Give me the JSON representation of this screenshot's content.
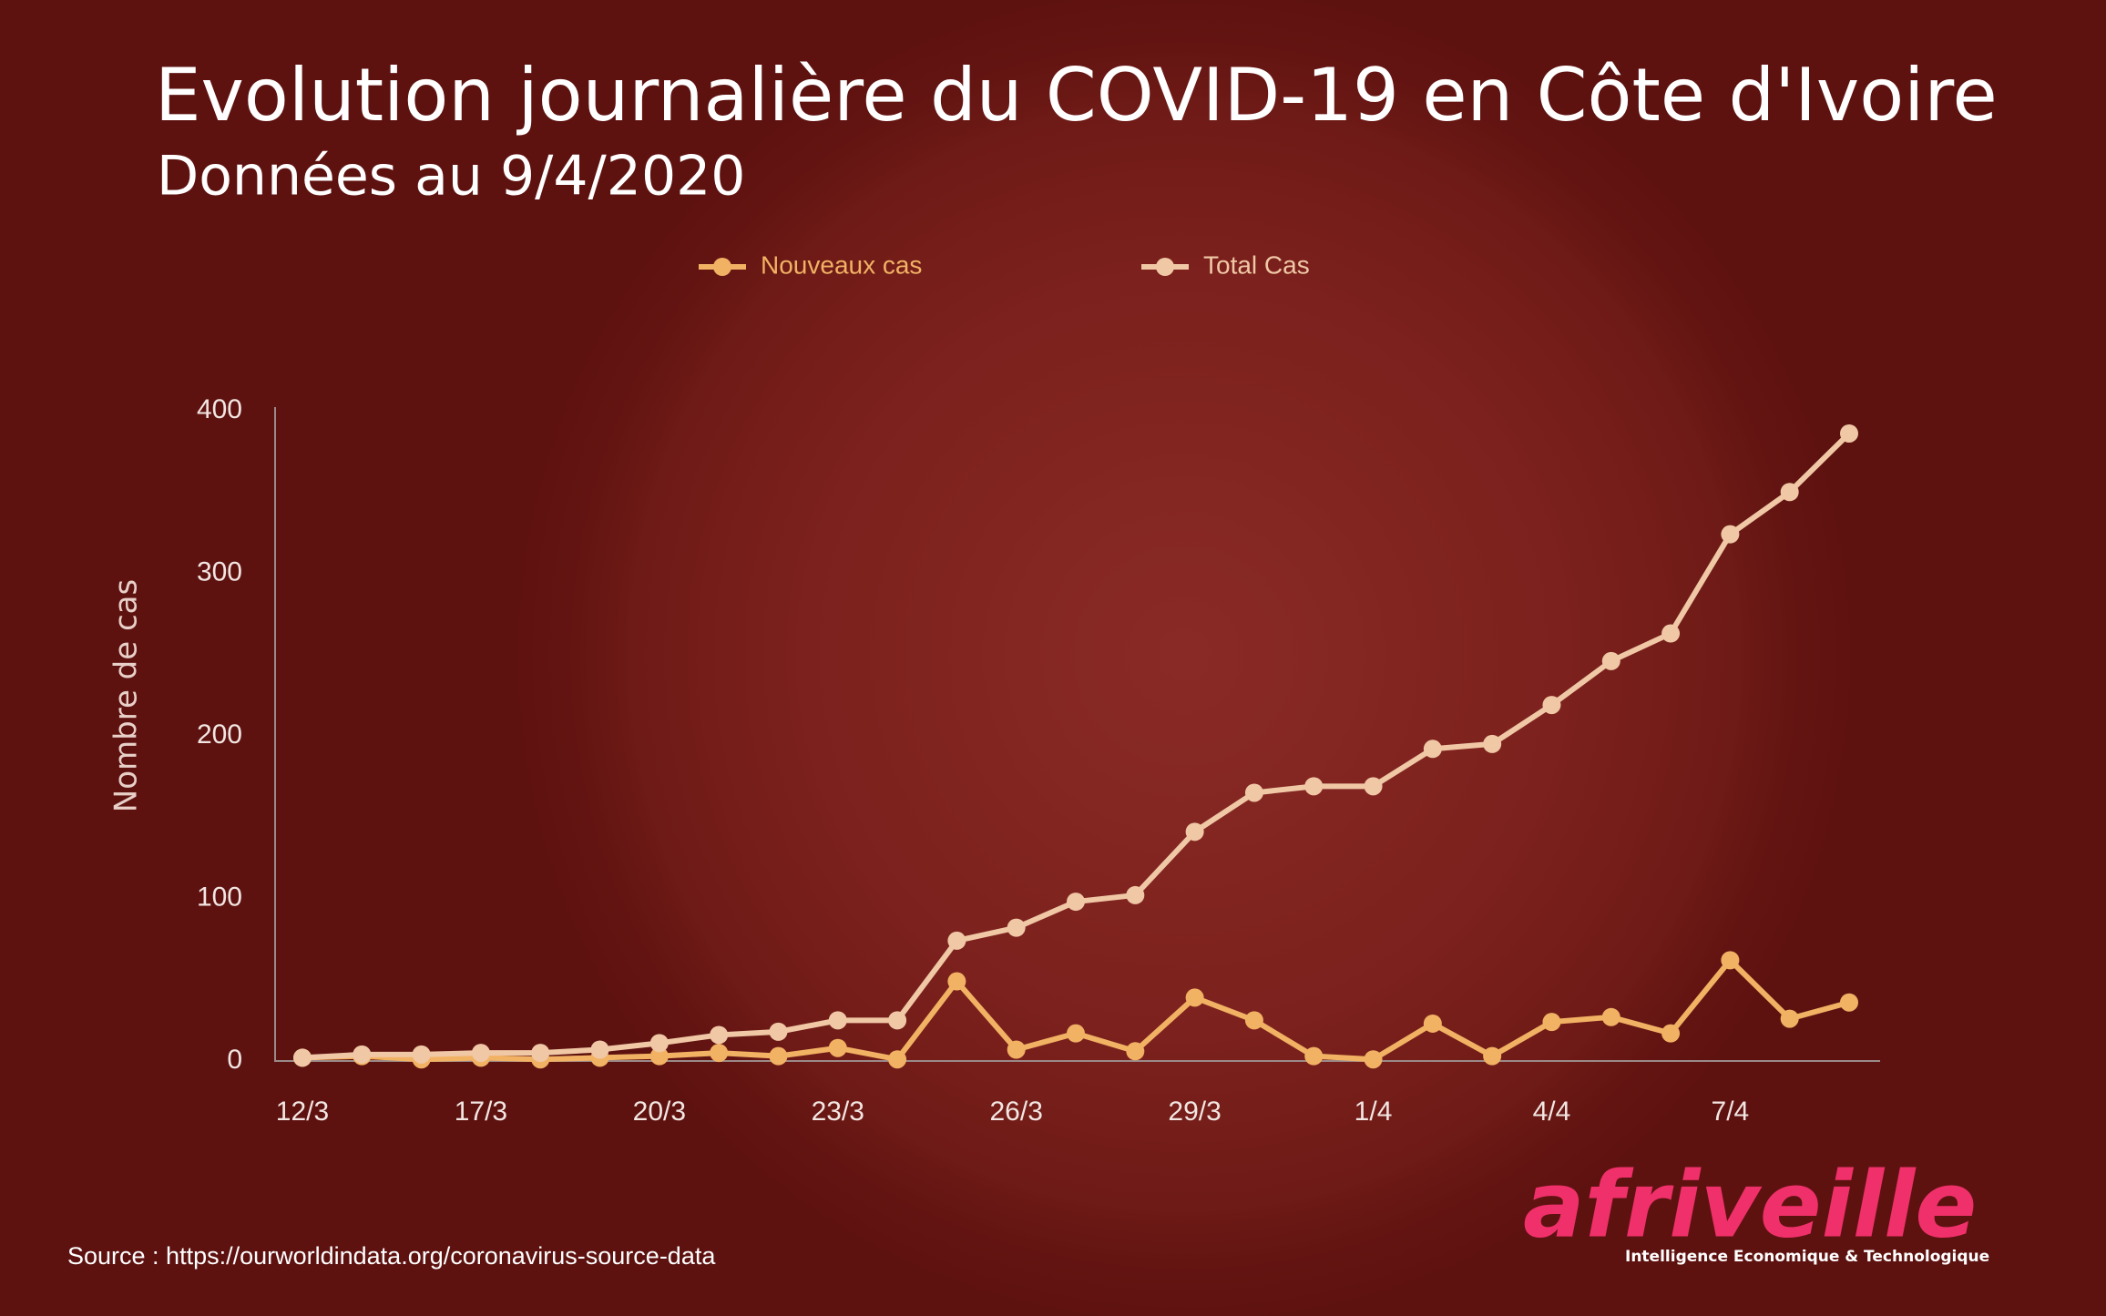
{
  "chart_data": {
    "type": "line",
    "title": "Evolution journalière du COVID-19 en Côte d'Ivoire",
    "subtitle": "Données au 9/4/2020",
    "y_label": "Nombre de cas",
    "source": "Source : https://ourworldindata.org/coronavirus-source-data",
    "logo": "afriveille",
    "logo_tagline": "Intelligence Economique & Technologique",
    "categories": [
      "12/3",
      null,
      null,
      "17/3",
      null,
      null,
      "20/3",
      null,
      null,
      "23/3",
      null,
      null,
      "26/3",
      null,
      null,
      "29/3",
      null,
      null,
      "1/4",
      null,
      null,
      "4/4",
      null,
      null,
      "7/4",
      null,
      null
    ],
    "series": [
      {
        "name": "Nouveaux cas",
        "color": "#f2b264",
        "values": [
          2,
          3,
          1,
          2,
          1,
          2,
          3,
          5,
          3,
          8,
          1,
          49,
          7,
          17,
          6,
          39,
          25,
          3,
          1,
          23,
          3,
          24,
          27,
          17,
          62,
          26,
          36
        ]
      },
      {
        "name": "Total Cas",
        "color": "#f0c8a6",
        "values": [
          2,
          4,
          4,
          5,
          5,
          7,
          11,
          16,
          18,
          25,
          25,
          74,
          82,
          98,
          102,
          141,
          165,
          169,
          169,
          192,
          195,
          219,
          246,
          263,
          324,
          350,
          386
        ]
      }
    ],
    "ylim": [
      0,
      400
    ],
    "yticks": [
      0,
      100,
      200,
      300,
      400
    ],
    "grid": false
  }
}
